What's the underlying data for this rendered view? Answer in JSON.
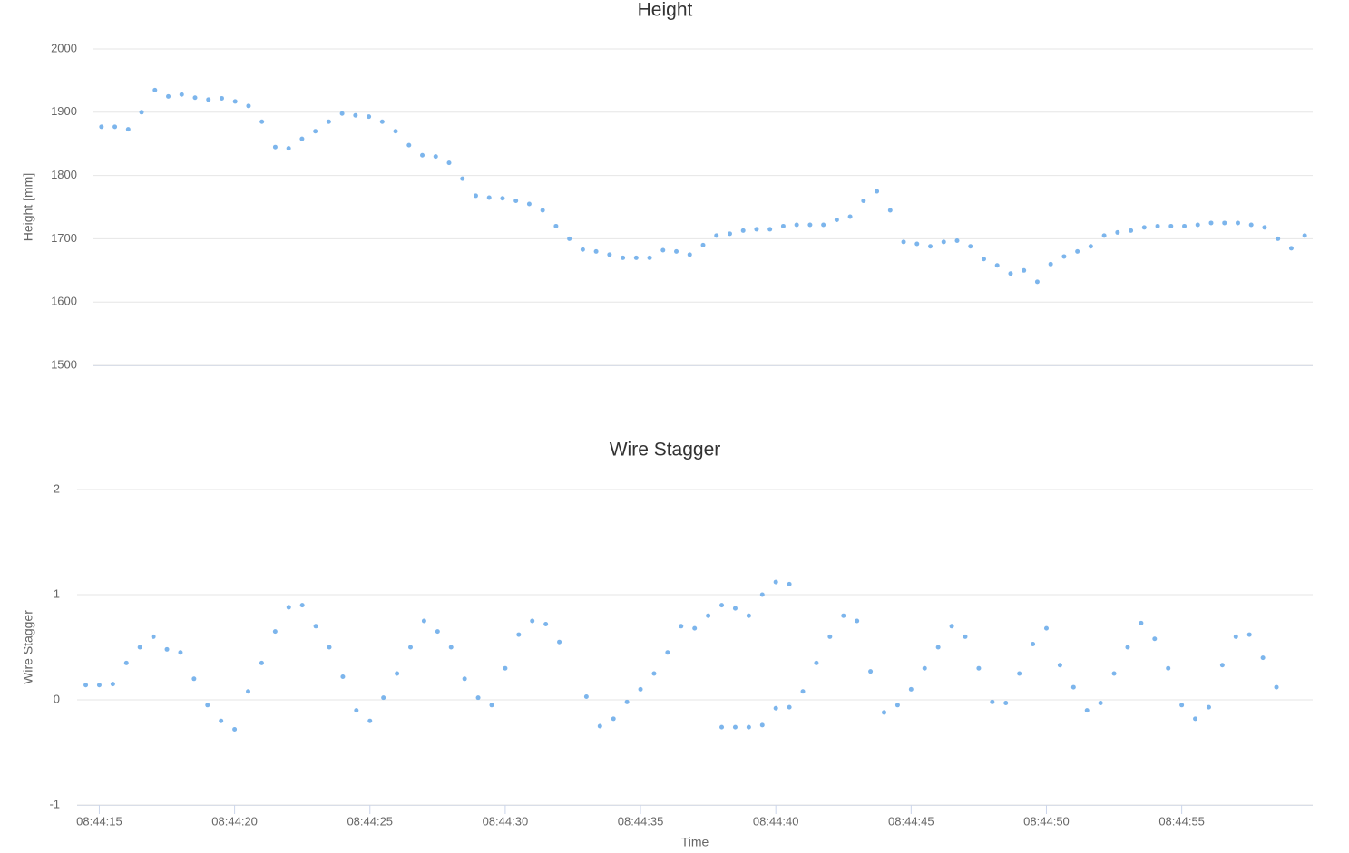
{
  "chart_data": [
    {
      "type": "scatter",
      "title": "Height",
      "ylabel": "Height [mm]",
      "color": "#7cb5ec",
      "grid": true,
      "xlim": [
        14.2,
        59.8
      ],
      "ylim": [
        1500,
        2000
      ],
      "yticks": [
        1500,
        1600,
        1700,
        1800,
        1900,
        2000
      ],
      "x": [
        14.5,
        15,
        15.5,
        16,
        16.5,
        17,
        17.5,
        18,
        18.5,
        19,
        19.5,
        20,
        20.5,
        21,
        21.5,
        22,
        22.5,
        23,
        23.5,
        24,
        24.5,
        25,
        25.5,
        26,
        26.5,
        27,
        27.5,
        28,
        28.5,
        29,
        29.5,
        30,
        30.5,
        31,
        31.5,
        32,
        32.5,
        33,
        33.5,
        34,
        34.5,
        35,
        35.5,
        36,
        36.5,
        37,
        37.5,
        38,
        38.5,
        39,
        39.5,
        40,
        40.5,
        41,
        41.5,
        42,
        42.5,
        43,
        43.5,
        44,
        44.5,
        45,
        45.5,
        46,
        46.5,
        47,
        47.5,
        48,
        48.5,
        49,
        49.5,
        50,
        50.5,
        51,
        51.5,
        52,
        52.5,
        53,
        53.5,
        54,
        54.5,
        55,
        55.5,
        56,
        56.5,
        57,
        57.5,
        58,
        58.5,
        59,
        59.5
      ],
      "values": [
        1877,
        1877,
        1873,
        1900,
        1935,
        1925,
        1928,
        1923,
        1920,
        1922,
        1917,
        1910,
        1885,
        1845,
        1843,
        1858,
        1870,
        1885,
        1898,
        1895,
        1893,
        1885,
        1870,
        1848,
        1832,
        1830,
        1820,
        1795,
        1768,
        1765,
        1764,
        1760,
        1755,
        1745,
        1720,
        1700,
        1683,
        1680,
        1675,
        1670,
        1670,
        1670,
        1682,
        1680,
        1675,
        1690,
        1705,
        1708,
        1713,
        1715,
        1715,
        1720,
        1722,
        1722,
        1722,
        1730,
        1735,
        1760,
        1775,
        1745,
        1695,
        1692,
        1688,
        1695,
        1697,
        1688,
        1668,
        1658,
        1645,
        1650,
        1632,
        1660,
        1672,
        1680,
        1688,
        1705,
        1710,
        1713,
        1718,
        1720,
        1720,
        1720,
        1722,
        1725,
        1725,
        1725,
        1722,
        1718,
        1700,
        1685,
        1705
      ]
    },
    {
      "type": "scatter",
      "title": "Wire Stagger",
      "ylabel": "Wire Stagger",
      "xlabel": "Time",
      "color": "#7cb5ec",
      "grid": true,
      "xlim": [
        14.18,
        59.84
      ],
      "ylim": [
        -1,
        2
      ],
      "yticks": [
        -1,
        0,
        1,
        2
      ],
      "xticks": [
        {
          "value": 15,
          "label": "08:44:15"
        },
        {
          "value": 20,
          "label": "08:44:20"
        },
        {
          "value": 25,
          "label": "08:44:25"
        },
        {
          "value": 30,
          "label": "08:44:30"
        },
        {
          "value": 35,
          "label": "08:44:35"
        },
        {
          "value": 40,
          "label": "08:44:40"
        },
        {
          "value": 45,
          "label": "08:44:45"
        },
        {
          "value": 50,
          "label": "08:44:50"
        },
        {
          "value": 55,
          "label": "08:44:55"
        }
      ],
      "x": [
        14.5,
        15,
        15.5,
        16,
        16.5,
        17,
        17.5,
        18,
        18.5,
        19,
        19.5,
        20,
        20.5,
        21,
        21.5,
        22,
        22.5,
        23,
        23.5,
        24,
        24.5,
        25,
        25.5,
        26,
        26.5,
        27,
        27.5,
        28,
        28.5,
        29,
        29.5,
        30,
        30.5,
        31,
        31.5,
        32,
        33,
        33.5,
        34,
        34.5,
        35,
        35.5,
        36,
        36.5,
        37,
        37.5,
        38,
        38.5,
        39,
        39.5,
        40,
        40.5,
        38,
        38.5,
        39,
        39.5,
        40,
        40.5,
        41,
        41.5,
        42,
        42.5,
        43,
        43.5,
        44,
        44.5,
        45,
        45.5,
        46,
        46.5,
        47,
        47.5,
        48,
        48.5,
        49,
        49.5,
        50,
        50.5,
        51,
        51.5,
        52,
        52.5,
        53,
        53.5,
        54,
        54.5,
        55,
        55.5,
        56,
        56.5,
        57,
        57.5,
        58,
        58.5
      ],
      "values": [
        0.14,
        0.14,
        0.15,
        0.35,
        0.5,
        0.6,
        0.48,
        0.45,
        0.2,
        -0.05,
        -0.2,
        -0.28,
        0.08,
        0.35,
        0.65,
        0.88,
        0.9,
        0.7,
        0.5,
        0.22,
        -0.1,
        -0.2,
        0.02,
        0.25,
        0.5,
        0.75,
        0.65,
        0.5,
        0.2,
        0.02,
        -0.05,
        0.3,
        0.62,
        0.75,
        0.72,
        0.55,
        0.03,
        -0.25,
        -0.18,
        -0.02,
        0.1,
        0.25,
        0.45,
        0.7,
        0.68,
        0.8,
        0.9,
        0.87,
        0.8,
        1.0,
        1.12,
        1.1,
        -0.26,
        -0.26,
        -0.26,
        -0.24,
        -0.08,
        -0.07,
        0.08,
        0.35,
        0.6,
        0.8,
        0.75,
        0.27,
        -0.12,
        -0.05,
        0.1,
        0.3,
        0.5,
        0.7,
        0.6,
        0.3,
        -0.02,
        -0.03,
        0.25,
        0.53,
        0.68,
        0.33,
        0.12,
        -0.1,
        -0.03,
        0.25,
        0.5,
        0.73,
        0.58,
        0.3,
        -0.05,
        -0.18,
        -0.07,
        0.33,
        0.6,
        0.62,
        0.4,
        0.12
      ]
    }
  ]
}
